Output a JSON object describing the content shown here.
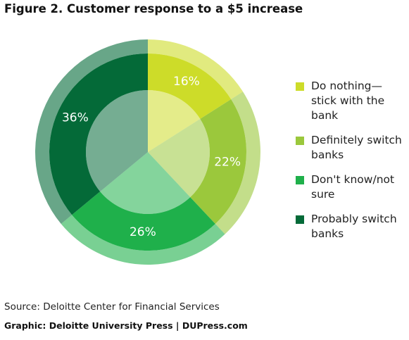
{
  "chart_data": {
    "type": "pie",
    "title": "Figure 2. Customer response to a $5 increase",
    "categories": [
      "Do nothing—stick with the bank",
      "Definitely switch banks",
      "Don't know/not sure",
      "Probably switch banks"
    ],
    "values": [
      16,
      22,
      26,
      36
    ],
    "value_labels": [
      "16%",
      "22%",
      "26%",
      "36%"
    ],
    "colors": [
      "#cddc29",
      "#9bc83c",
      "#1fb04b",
      "#046a38"
    ],
    "source": "Source: Deloitte Center for Financial Services",
    "credit": "Graphic: Deloitte University Press | DUPress.com"
  }
}
